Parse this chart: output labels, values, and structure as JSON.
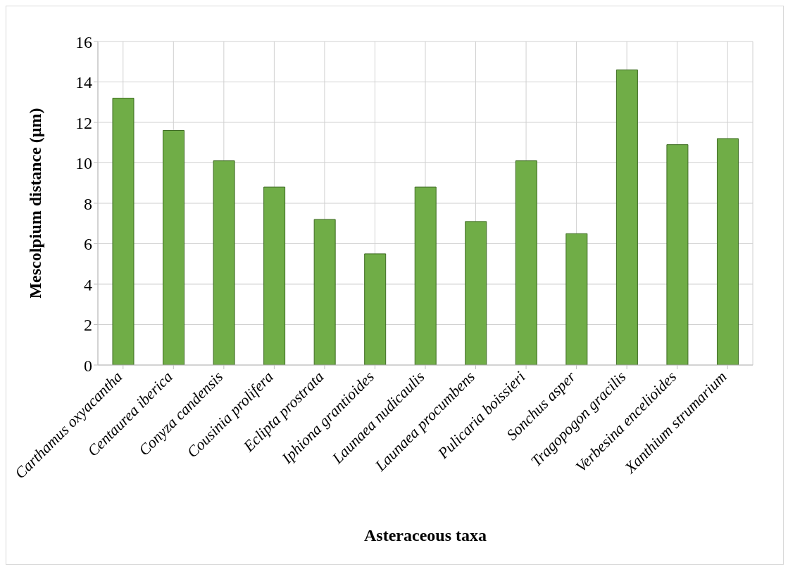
{
  "chart_data": {
    "type": "bar",
    "xlabel": "Asteraceous taxa",
    "ylabel": "Mescolpium distance (µm)",
    "categories": [
      "Carthamus oxyacantha",
      "Centaurea iberica",
      "Conyza candensis",
      "Cousinia prolifera",
      "Eclipta prostrata",
      "Iphiona grantioides",
      "Launaea nudicaulis",
      "Launaea procumbens",
      "Pulicaria boissieri",
      "Sonchus asper",
      "Tragopogon gracilis",
      "Verbesina encelioides",
      "Xanthium strumarium"
    ],
    "values": [
      13.2,
      11.6,
      10.1,
      8.8,
      7.2,
      5.5,
      8.8,
      7.1,
      10.1,
      6.5,
      14.6,
      10.9,
      11.2
    ],
    "color": "#70ad47",
    "ylim": [
      0,
      16
    ],
    "yticks": [
      0,
      2,
      4,
      6,
      8,
      10,
      12,
      14,
      16
    ],
    "grid": true
  }
}
